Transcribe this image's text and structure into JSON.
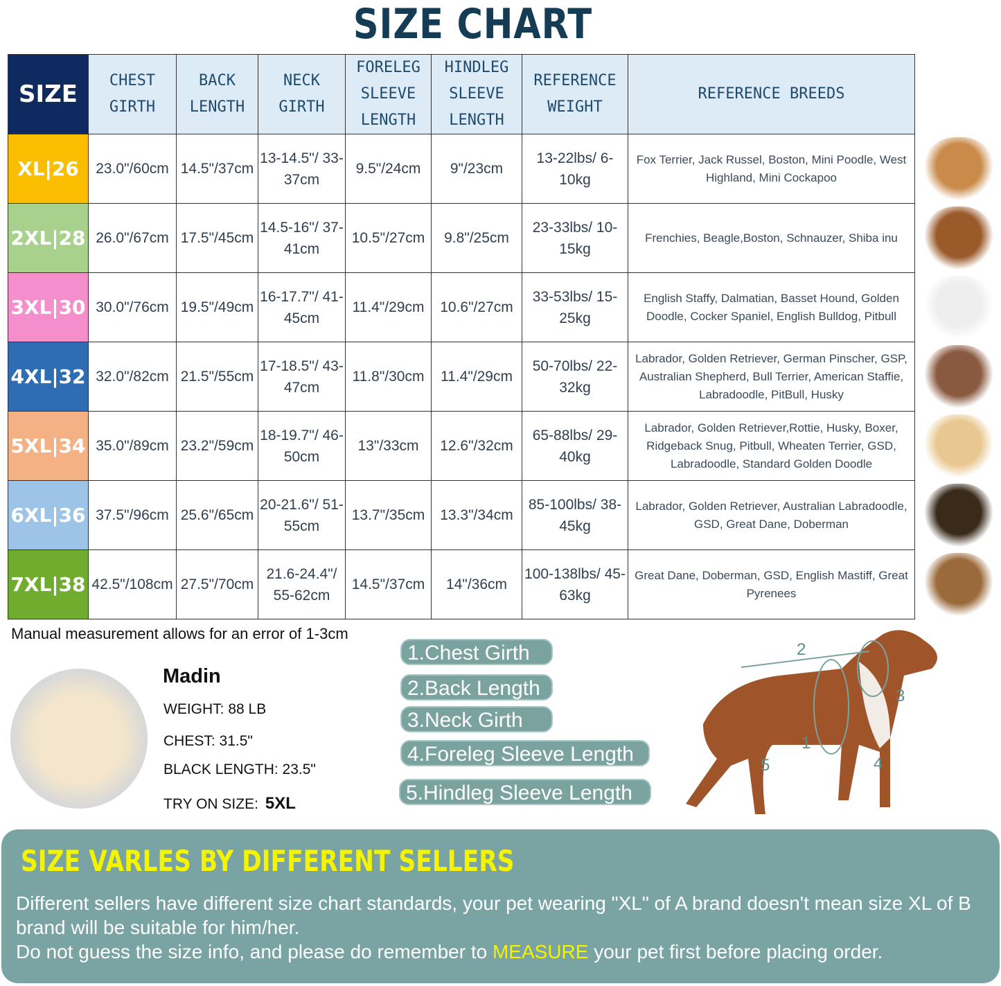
{
  "title": "SIZE CHART",
  "headers": [
    "SIZE",
    "CHEST GIRTH",
    "BACK LENGTH",
    "NECK GIRTH",
    "FORELEG SLEEVE LENGTH",
    "HINDLEG SLEEVE LENGTH",
    "REFERENCE WEIGHT",
    "REFERENCE BREEDS"
  ],
  "rows": [
    {
      "size": "XL|26",
      "color": "#fbbd00",
      "chest": "23.0\"/60cm",
      "back": "14.5\"/37cm",
      "neck": "13-14.5\"/ 33-37cm",
      "foreleg": "9.5\"/24cm",
      "hindleg": "9\"/23cm",
      "weight": "13-22lbs/ 6-10kg",
      "breeds": "Fox Terrier, Jack Russel, Boston, Mini Poodle, West Highland, Mini Cockapoo"
    },
    {
      "size": "2XL|28",
      "color": "#a9d18e",
      "chest": "26.0\"/67cm",
      "back": "17.5\"/45cm",
      "neck": "14.5-16\"/ 37-41cm",
      "foreleg": "10.5\"/27cm",
      "hindleg": "9.8\"/25cm",
      "weight": "23-33lbs/ 10-15kg",
      "breeds": "Frenchies, Beagle,Boston, Schnauzer, Shiba inu"
    },
    {
      "size": "3XL|30",
      "color": "#f48fcc",
      "chest": "30.0\"/76cm",
      "back": "19.5\"/49cm",
      "neck": "16-17.7\"/ 41-45cm",
      "foreleg": "11.4\"/29cm",
      "hindleg": "10.6\"/27cm",
      "weight": "33-53lbs/ 15-25kg",
      "breeds": "English Staffy, Dalmatian, Basset Hound, Golden Doodle, Cocker Spaniel, English Bulldog, Pitbull"
    },
    {
      "size": "4XL|32",
      "color": "#2e6db4",
      "chest": "32.0\"/82cm",
      "back": "21.5\"/55cm",
      "neck": "17-18.5\"/ 43-47cm",
      "foreleg": "11.8\"/30cm",
      "hindleg": "11.4\"/29cm",
      "weight": "50-70lbs/ 22-32kg",
      "breeds": "Labrador, Golden Retriever, German Pinscher, GSP, Australian Shepherd, Bull Terrier, American Staffie, Labradoodle, PitBull, Husky"
    },
    {
      "size": "5XL|34",
      "color": "#f4b183",
      "chest": "35.0\"/89cm",
      "back": "23.2\"/59cm",
      "neck": "18-19.7\"/ 46-50cm",
      "foreleg": "13\"/33cm",
      "hindleg": "12.6\"/32cm",
      "weight": "65-88lbs/ 29-40kg",
      "breeds": "Labrador, Golden Retriever,Rottie, Husky, Boxer, Ridgeback Snug, Pitbull, Wheaten Terrier, GSD, Labradoodle,  Standard Golden Doodle"
    },
    {
      "size": "6XL|36",
      "color": "#9dc3e6",
      "chest": "37.5\"/96cm",
      "back": "25.6\"/65cm",
      "neck": "20-21.6\"/ 51-55cm",
      "foreleg": "13.7\"/35cm",
      "hindleg": "13.3\"/34cm",
      "weight": "85-100lbs/ 38-45kg",
      "breeds": "Labrador, Golden Retriever, Australian Labradoodle, GSD, Great Dane, Doberman"
    },
    {
      "size": "7XL|38",
      "color": "#70ad2f",
      "chest": "42.5\"/108cm",
      "back": "27.5\"/70cm",
      "neck": "21.6-24.4\"/ 55-62cm",
      "foreleg": "14.5\"/37cm",
      "hindleg": "14\"/36cm",
      "weight": "100-138lbs/ 45-63kg",
      "breeds": "Great Dane, Doberman, GSD, English Mastiff, Great Pyrenees"
    }
  ],
  "note": "Manual measurement allows for an error of 1-3cm",
  "example": {
    "name": "Madin",
    "weight": "WEIGHT: 88 LB",
    "chest": "CHEST: 31.5\"",
    "length": "BLACK LENGTH: 23.5\"",
    "try_label": "TRY ON SIZE:",
    "try_value": "5XL"
  },
  "measures": [
    "1.Chest Girth",
    "2.Back Length",
    "3.Neck Girth",
    "4.Foreleg Sleeve Length",
    "5.Hindleg Sleeve Length"
  ],
  "diagram_labels": [
    "1",
    "2",
    "3",
    "4",
    "5"
  ],
  "panel": {
    "title": "SIZE VARLES BY DIFFERENT SELLERS",
    "line1": "Different sellers have different size chart standards, your pet wearing \"XL\" of A brand doesn't mean size XL of B brand will be suitable for him/her.",
    "line2a": "Do not guess the size info, and please do remember to ",
    "line2b": "MEASURE",
    "line2c": " your pet first before placing order."
  },
  "colors": {
    "header": "#0f2a5e",
    "panel": "#7aa3a3",
    "pill": "#7aa3a0",
    "highlight": "#f4f400"
  }
}
